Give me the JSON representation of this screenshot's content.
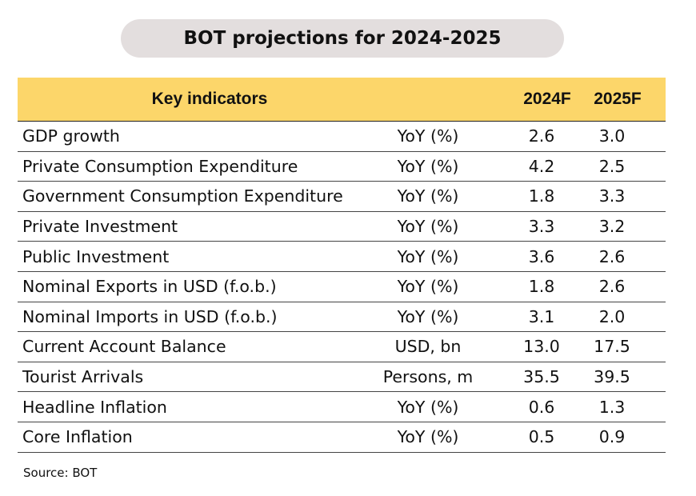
{
  "title": "BOT projections for 2024-2025",
  "table": {
    "headers": {
      "indicator": "Key indicators",
      "year1": "2024F",
      "year2": "2025F"
    },
    "rows": [
      {
        "indicator": "GDP growth",
        "unit": "YoY (%)",
        "y2024": "2.6",
        "y2025": "3.0"
      },
      {
        "indicator": "Private Consumption Expenditure",
        "unit": "YoY (%)",
        "y2024": "4.2",
        "y2025": "2.5"
      },
      {
        "indicator": "Government Consumption Expenditure",
        "unit": "YoY (%)",
        "y2024": "1.8",
        "y2025": "3.3"
      },
      {
        "indicator": "Private Investment",
        "unit": "YoY (%)",
        "y2024": "3.3",
        "y2025": "3.2"
      },
      {
        "indicator": "Public Investment",
        "unit": "YoY (%)",
        "y2024": "3.6",
        "y2025": "2.6"
      },
      {
        "indicator": "Nominal Exports in USD (f.o.b.)",
        "unit": "YoY (%)",
        "y2024": "1.8",
        "y2025": "2.6"
      },
      {
        "indicator": "Nominal Imports in USD (f.o.b.)",
        "unit": "YoY (%)",
        "y2024": "3.1",
        "y2025": "2.0"
      },
      {
        "indicator": "Current Account Balance",
        "unit": "USD, bn",
        "y2024": "13.0",
        "y2025": "17.5"
      },
      {
        "indicator": "Tourist Arrivals",
        "unit": "Persons, m",
        "y2024": "35.5",
        "y2025": "39.5"
      },
      {
        "indicator": "Headline Inflation",
        "unit": "YoY (%)",
        "y2024": "0.6",
        "y2025": "1.3"
      },
      {
        "indicator": "Core Inflation",
        "unit": "YoY (%)",
        "y2024": "0.5",
        "y2025": "0.9"
      }
    ]
  },
  "source": "Source: BOT",
  "colors": {
    "header_bg": "#fcd66a",
    "title_bg": "#e3dede"
  }
}
